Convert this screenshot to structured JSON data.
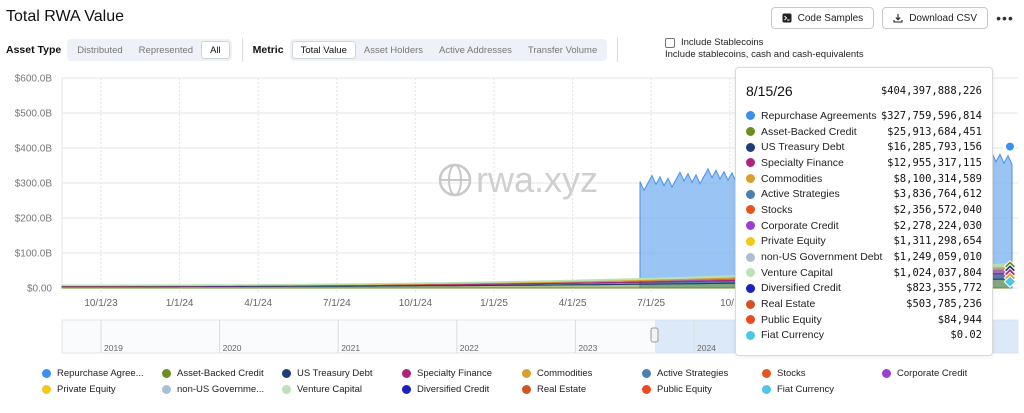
{
  "header": {
    "title": "Total RWA Value",
    "code_samples_label": "Code Samples",
    "download_csv_label": "Download CSV",
    "more_label": "•••"
  },
  "filters": {
    "asset_type_label": "Asset Type",
    "asset_type_options": [
      "Distributed",
      "Represented",
      "All"
    ],
    "asset_type_selected": "All",
    "metric_label": "Metric",
    "metric_options": [
      "Total Value",
      "Asset Holders",
      "Active Addresses",
      "Transfer Volume"
    ],
    "metric_selected": "Total Value",
    "stablecoins_label": "Include Stablecoins",
    "stablecoins_sub": "Include stablecoins, cash and cash-equivalents",
    "stablecoins_checked": false
  },
  "watermark": "rwa.xyz",
  "chart_data": {
    "type": "area",
    "stacked": true,
    "y_ticks": [
      "$0.00",
      "$100.0B",
      "$200.0B",
      "$300.0B",
      "$400.0B",
      "$500.0B",
      "$600.0B"
    ],
    "ylim": [
      0,
      600
    ],
    "x_ticks": [
      "10/1/23",
      "1/1/24",
      "4/1/24",
      "7/1/24",
      "10/1/24",
      "1/1/25",
      "4/1/25",
      "7/1/25",
      "10/1"
    ],
    "navigator_years": [
      "2019",
      "2020",
      "2021",
      "2022",
      "2023",
      "2024"
    ],
    "grid": true,
    "tooltip": {
      "date": "8/15/26",
      "total": "$404,397,888,226",
      "rows": [
        {
          "name": "Repurchase Agreements",
          "value": "$327,759,596,814",
          "color": "#3b8ff0"
        },
        {
          "name": "Asset-Backed Credit",
          "value": "$25,913,684,451",
          "color": "#6b8e23"
        },
        {
          "name": "US Treasury Debt",
          "value": "$16,285,793,156",
          "color": "#1d3e74"
        },
        {
          "name": "Specialty Finance",
          "value": "$12,955,317,115",
          "color": "#b0237a"
        },
        {
          "name": "Commodities",
          "value": "$8,100,314,589",
          "color": "#d9a02c"
        },
        {
          "name": "Active Strategies",
          "value": "$3,836,764,612",
          "color": "#4a7fb0"
        },
        {
          "name": "Stocks",
          "value": "$2,356,572,040",
          "color": "#e8541d"
        },
        {
          "name": "Corporate Credit",
          "value": "$2,278,224,030",
          "color": "#9a3fd1"
        },
        {
          "name": "Private Equity",
          "value": "$1,311,298,654",
          "color": "#f2c81b"
        },
        {
          "name": "non-US Government Debt",
          "value": "$1,249,059,010",
          "color": "#a9bfd6"
        },
        {
          "name": "Venture Capital",
          "value": "$1,024,037,804",
          "color": "#b9e3b5"
        },
        {
          "name": "Diversified Credit",
          "value": "$823,355,772",
          "color": "#1b1fc4"
        },
        {
          "name": "Real Estate",
          "value": "$503,785,236",
          "color": "#d2531f"
        },
        {
          "name": "Public Equity",
          "value": "$84,944",
          "color": "#ef4a1f"
        },
        {
          "name": "Fiat Currency",
          "value": "$0.02",
          "color": "#4fc6e8"
        }
      ]
    },
    "series": [
      {
        "name": "Repurchase Agreements",
        "color": "#3b8ff0"
      },
      {
        "name": "Asset-Backed Credit",
        "color": "#6b8e23"
      },
      {
        "name": "US Treasury Debt",
        "color": "#1d3e74"
      },
      {
        "name": "Specialty Finance",
        "color": "#b0237a"
      },
      {
        "name": "Commodities",
        "color": "#d9a02c"
      },
      {
        "name": "Active Strategies",
        "color": "#4a7fb0"
      },
      {
        "name": "Stocks",
        "color": "#e8541d"
      },
      {
        "name": "Corporate Credit",
        "color": "#9a3fd1"
      },
      {
        "name": "Private Equity",
        "color": "#f2c81b"
      },
      {
        "name": "non-US Government Debt",
        "color": "#a9bfd6"
      },
      {
        "name": "Venture Capital",
        "color": "#b9e3b5"
      },
      {
        "name": "Diversified Credit",
        "color": "#1b1fc4"
      },
      {
        "name": "Real Estate",
        "color": "#d2531f"
      },
      {
        "name": "Public Equity",
        "color": "#ef4a1f"
      },
      {
        "name": "Fiat Currency",
        "color": "#4fc6e8"
      }
    ]
  },
  "legend": [
    {
      "label": "Repurchase Agree...",
      "color": "#3b8ff0"
    },
    {
      "label": "Asset-Backed Credit",
      "color": "#6b8e23"
    },
    {
      "label": "US Treasury Debt",
      "color": "#1d3e74"
    },
    {
      "label": "Specialty Finance",
      "color": "#b0237a"
    },
    {
      "label": "Commodities",
      "color": "#d9a02c"
    },
    {
      "label": "Active Strategies",
      "color": "#4a7fb0"
    },
    {
      "label": "Stocks",
      "color": "#e8541d"
    },
    {
      "label": "Corporate Credit",
      "color": "#9a3fd1"
    },
    {
      "label": "Private Equity",
      "color": "#f2c81b"
    },
    {
      "label": "non-US Governme...",
      "color": "#a9bfd6"
    },
    {
      "label": "Venture Capital",
      "color": "#b9e3b5"
    },
    {
      "label": "Diversified Credit",
      "color": "#1b1fc4"
    },
    {
      "label": "Real Estate",
      "color": "#d2531f"
    },
    {
      "label": "Public Equity",
      "color": "#ef4a1f"
    },
    {
      "label": "Fiat Currency",
      "color": "#4fc6e8"
    }
  ]
}
